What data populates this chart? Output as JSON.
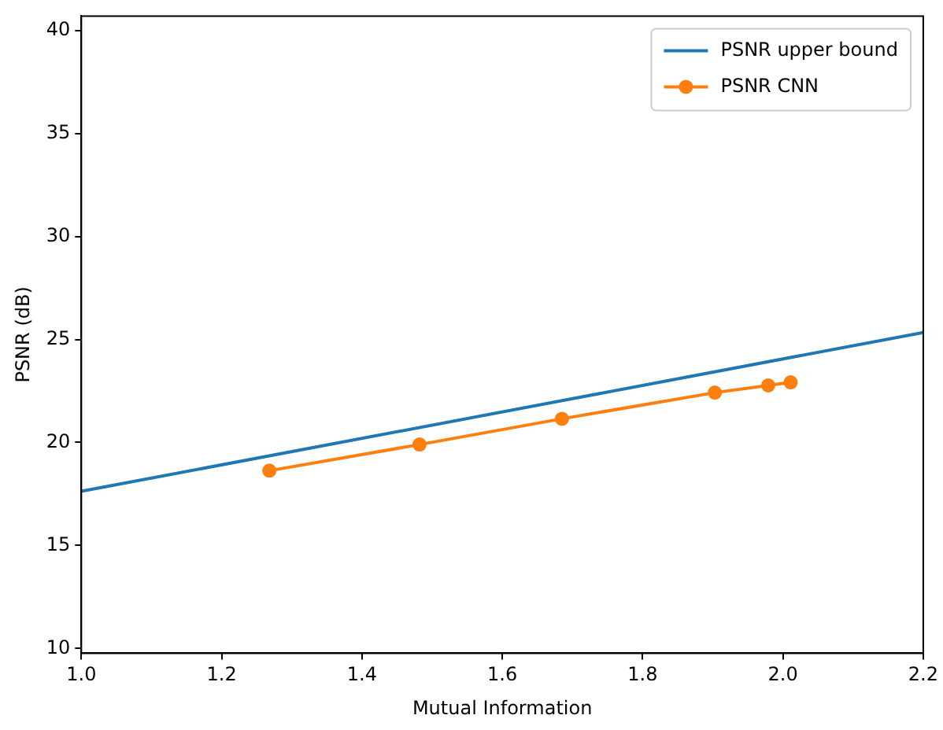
{
  "chart_data": {
    "type": "line",
    "xlabel": "Mutual Information",
    "ylabel": "PSNR (dB)",
    "xlim": [
      1.0,
      2.2
    ],
    "xticks": [
      {
        "value": 1.0,
        "label": "1.0"
      },
      {
        "value": 1.2,
        "label": "1.2"
      },
      {
        "value": 1.4,
        "label": "1.4"
      },
      {
        "value": 1.6,
        "label": "1.6"
      },
      {
        "value": 1.8,
        "label": "1.8"
      },
      {
        "value": 2.0,
        "label": "2.0"
      },
      {
        "value": 2.2,
        "label": "2.2"
      }
    ],
    "ylim": [
      9.77,
      40.7
    ],
    "yticks": [
      10,
      15,
      20,
      25,
      30,
      35,
      40
    ],
    "grid": false,
    "legend": "top right",
    "series": [
      {
        "name": "PSNR upper bound",
        "color": "#1f77b4",
        "marker": "none",
        "x": [
          1.0,
          2.2
        ],
        "values": [
          17.63,
          25.34
        ]
      },
      {
        "name": "PSNR CNN",
        "color": "#ff7f0e",
        "marker": "circle",
        "x": [
          1.268,
          1.482,
          1.685,
          1.903,
          1.979,
          2.011
        ],
        "values": [
          18.63,
          19.9,
          21.15,
          22.42,
          22.77,
          22.92
        ]
      }
    ]
  }
}
